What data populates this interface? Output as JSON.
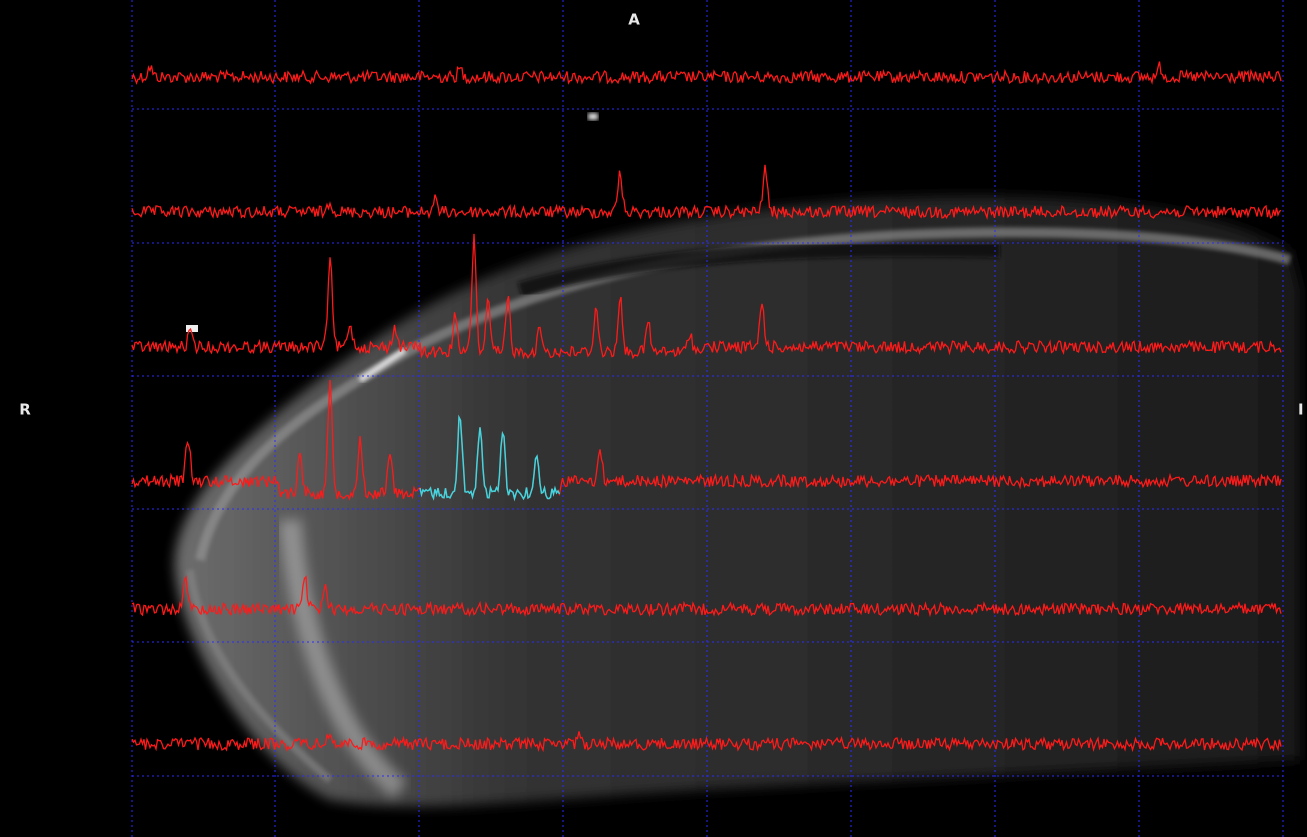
{
  "labels": {
    "top": "A",
    "left": "R",
    "right": "I"
  }
}
